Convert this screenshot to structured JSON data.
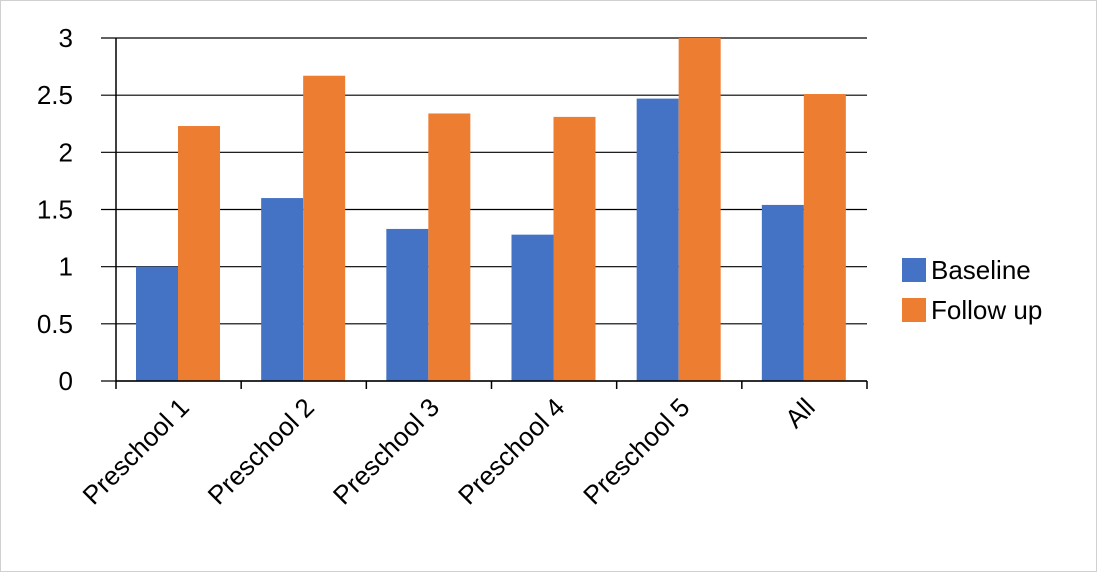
{
  "chart_data": {
    "type": "bar",
    "title": "",
    "xlabel": "",
    "ylabel": "",
    "categories": [
      "Preschool 1",
      "Preschool 2",
      "Preschool 3",
      "Preschool 4",
      "Preschool 5",
      "All"
    ],
    "series": [
      {
        "name": "Baseline",
        "color": "#4472C4",
        "values": [
          1.0,
          1.6,
          1.33,
          1.28,
          2.47,
          1.54
        ]
      },
      {
        "name": "Follow up",
        "color": "#ED7D31",
        "values": [
          2.23,
          2.67,
          2.34,
          2.31,
          3.0,
          2.51
        ]
      }
    ],
    "ylim": [
      0,
      3
    ],
    "yticks": [
      "0",
      "0.5",
      "1",
      "1.5",
      "2",
      "2.5",
      "3"
    ],
    "grid": true,
    "legend": "right"
  }
}
